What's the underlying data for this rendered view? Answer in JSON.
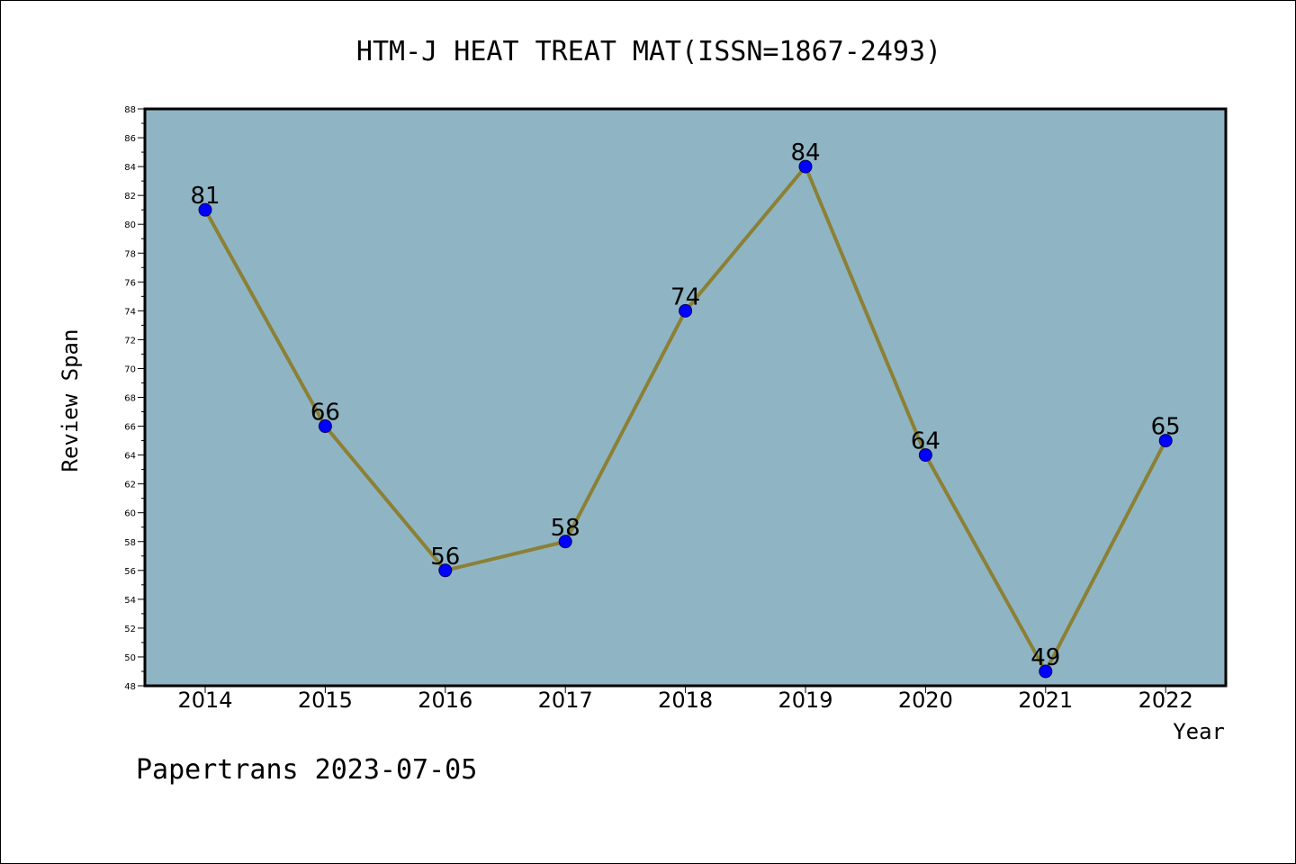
{
  "chart_data": {
    "type": "line",
    "title": "HTM-J HEAT TREAT MAT(ISSN=1867-2493)",
    "xlabel": "Year",
    "ylabel": "Review Span",
    "categories": [
      "2014",
      "2015",
      "2016",
      "2017",
      "2018",
      "2019",
      "2020",
      "2021",
      "2022"
    ],
    "series": [
      {
        "values": [
          81,
          66,
          56,
          58,
          74,
          84,
          64,
          49,
          65
        ]
      }
    ],
    "ylim": [
      48,
      88
    ],
    "yticks": [
      48,
      50,
      52,
      54,
      56,
      58,
      60,
      62,
      64,
      66,
      68,
      70,
      72,
      74,
      76,
      78,
      80,
      82,
      84,
      86,
      88
    ],
    "grid": false,
    "colors": {
      "plot_background": "#8fb5c4",
      "line": "#8b8035",
      "marker_fill": "#0000ff",
      "marker_stroke": "#000066"
    }
  },
  "footer": "Papertrans 2023-07-05"
}
